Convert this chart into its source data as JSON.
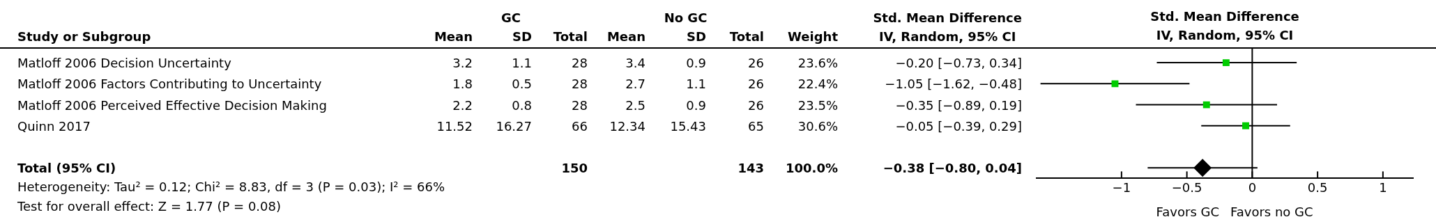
{
  "chart_data": [
    {
      "type": "other",
      "title": "Study or Subgroup",
      "categories": [
        "Mean",
        "SD",
        "Total",
        "Mean",
        "SD",
        "Total",
        "Weight",
        "Std. Mean Difference\nIV, Random, 95% CI"
      ],
      "y_categories": [
        "Matloff 2006 Decision Uncertainty",
        "Matloff 2006 Factors Contributing to Uncertainty",
        "Matloff 2006 Perceived Effective Decision Making",
        "Quinn 2017",
        null,
        "Total (95% CI)"
      ],
      "cell_labels": [
        [
          "3.2",
          "1.1",
          "28",
          "3.4",
          "0.9",
          "26",
          "23.6%",
          "−0.20 [−0.73, 0.34]"
        ],
        [
          "1.8",
          "0.5",
          "28",
          "2.7",
          "1.1",
          "26",
          "22.4%",
          "−1.05 [−1.62, −0.48]"
        ],
        [
          "2.2",
          "0.8",
          "28",
          "2.5",
          "0.9",
          "26",
          "23.5%",
          "−0.35 [−0.89, 0.19]"
        ],
        [
          "11.52",
          "16.27",
          "66",
          "12.34",
          "15.43",
          "65",
          "30.6%",
          "−0.05 [−0.39, 0.29]"
        ],
        [
          null,
          null,
          null,
          null,
          null,
          null,
          null,
          null
        ],
        [
          null,
          null,
          "150",
          null,
          null,
          "143",
          "100.0%",
          "−0.38 [−0.80, 0.04]"
        ]
      ],
      "annotations": [
        "GC",
        "No GC",
        "Heterogeneity: Tau² = 0.12; Chi² = 8.83, df = 3 (P = 0.03); I² = 66%",
        "Test for overall effect: Z = 1.77 (P = 0.08)"
      ]
    },
    {
      "type": "scatter",
      "title": "Std. Mean Difference",
      "subtitle": "IV, Random, 95% CI",
      "orientation": "horizontal",
      "categories": [
        null,
        null,
        null,
        null,
        null,
        null
      ],
      "series": [
        {
          "color": "#00cc00",
          "marker": "square",
          "values": [
            -0.2,
            -1.05,
            -0.35,
            -0.05,
            null,
            null
          ],
          "errors": [
            [
              -0.73,
              0.34
            ],
            [
              -1.62,
              -0.48
            ],
            [
              -0.89,
              0.19
            ],
            [
              -0.39,
              0.29
            ],
            null,
            null
          ]
        },
        {
          "color": "#000000",
          "marker": "diamond",
          "values": [
            null,
            null,
            null,
            null,
            null,
            -0.38
          ],
          "errors": [
            null,
            null,
            null,
            null,
            null,
            [
              -0.8,
              0.04
            ]
          ]
        }
      ],
      "xlim": [
        -1.65,
        1.23
      ],
      "xticks": [
        {
          "value": -1,
          "label": "−1"
        },
        {
          "value": -0.5,
          "label": "−0.5"
        },
        0,
        0.5,
        1
      ],
      "ref_lines": [
        {
          "axis": "x",
          "value": 0
        }
      ],
      "tick_labels": "x",
      "grid": false,
      "legend": false,
      "annotations": [
        "Favors GC",
        "Favors no GC"
      ]
    }
  ]
}
